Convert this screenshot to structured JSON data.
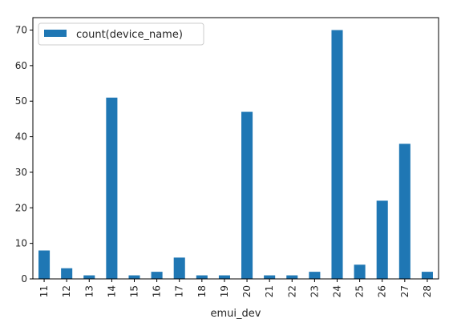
{
  "chart_data": {
    "type": "bar",
    "categories": [
      "11",
      "12",
      "13",
      "14",
      "15",
      "16",
      "17",
      "18",
      "19",
      "20",
      "21",
      "22",
      "23",
      "24",
      "25",
      "26",
      "27",
      "28"
    ],
    "series": [
      {
        "name": "count(device_name)",
        "values": [
          8,
          3,
          1,
          51,
          1,
          2,
          6,
          1,
          1,
          47,
          1,
          1,
          2,
          70,
          4,
          22,
          38,
          2
        ]
      }
    ],
    "xlabel": "emui_dev",
    "ylabel": "",
    "ylim": [
      0,
      73.5
    ],
    "yticks": [
      0,
      10,
      20,
      30,
      40,
      50,
      60,
      70
    ],
    "grid": false,
    "legend_position": "top-left",
    "bar_color": "#1f77b4"
  }
}
